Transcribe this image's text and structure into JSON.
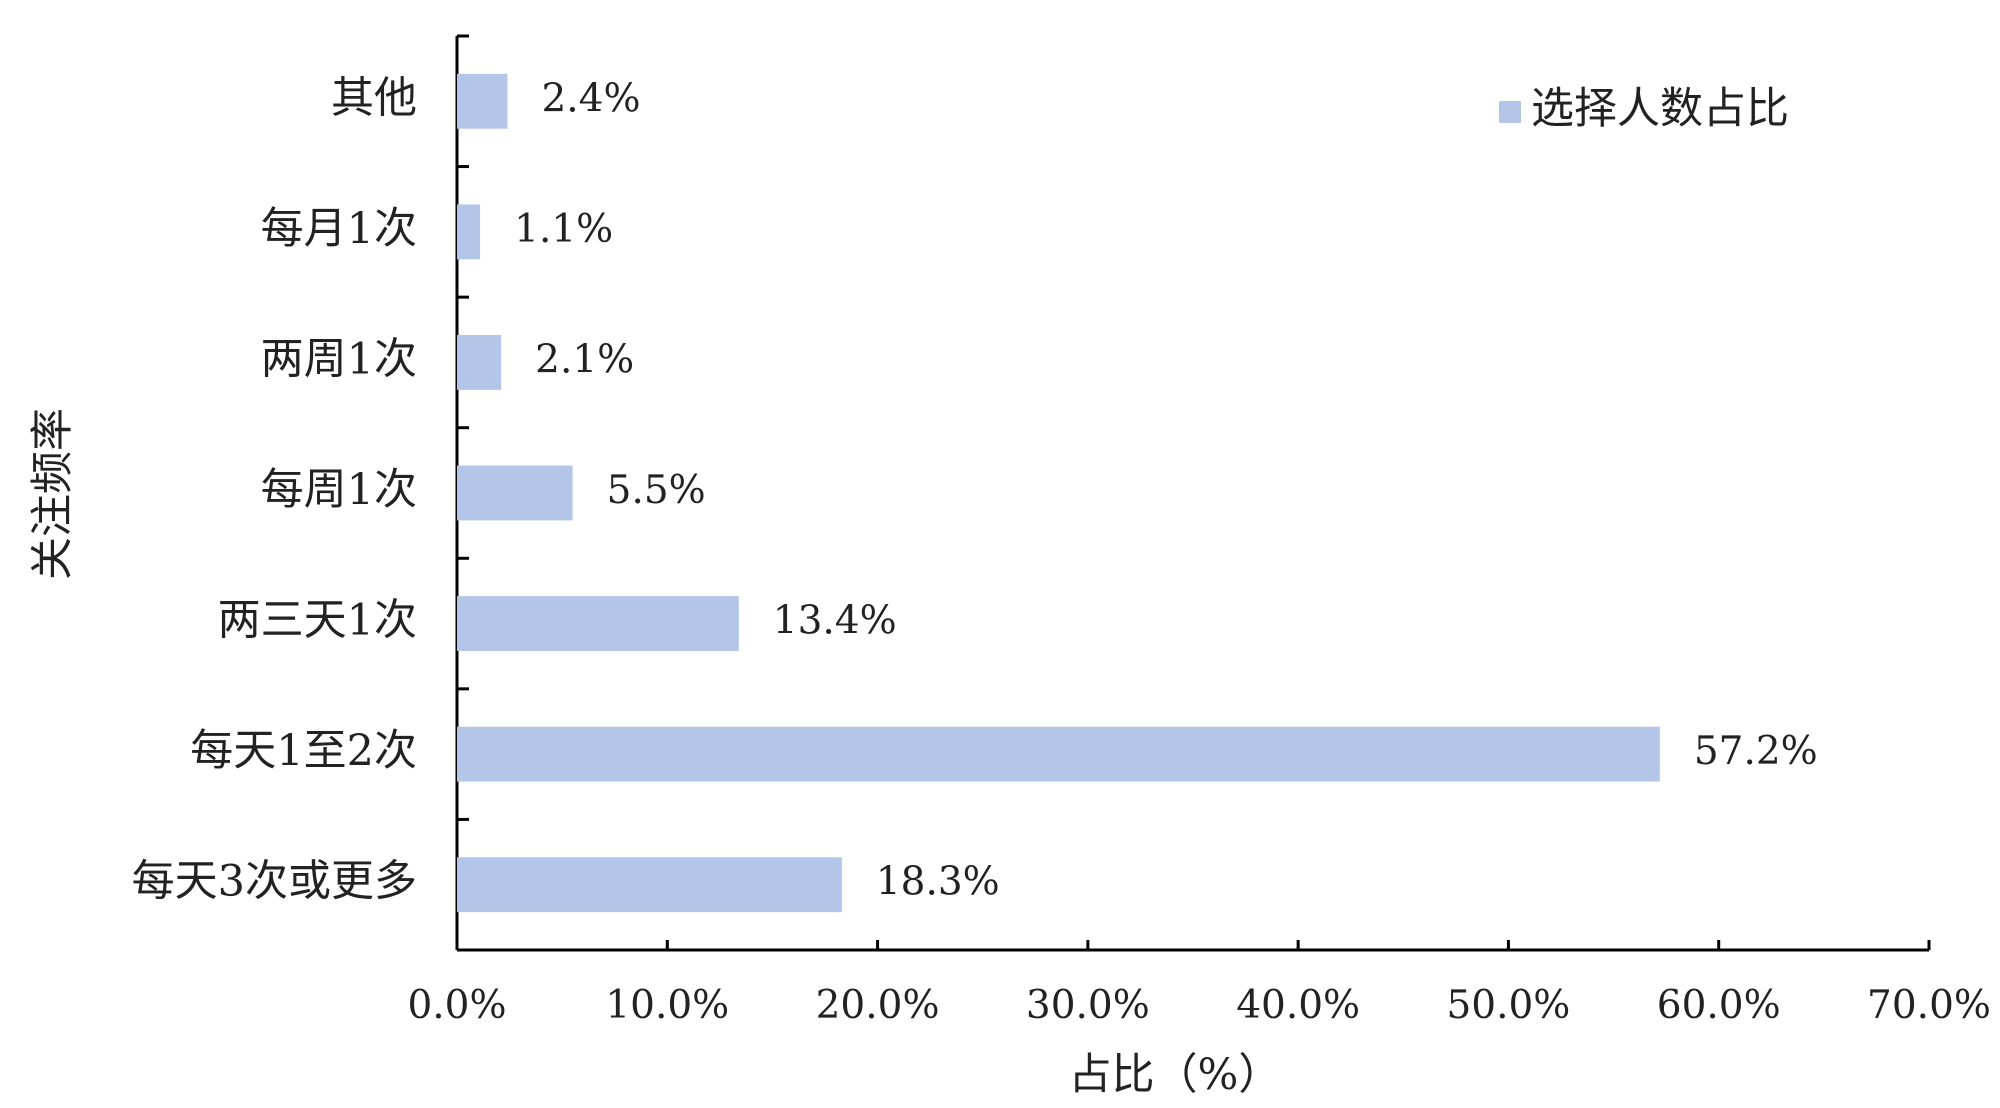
{
  "chart_data": {
    "type": "barh",
    "categories": [
      "其他",
      "每月1次",
      "两周1次",
      "每周1次",
      "两三天1次",
      "每天1至2次",
      "每天3次或更多"
    ],
    "series": [
      {
        "name": "选择人数占比",
        "color": "#b4c6e7",
        "values": [
          2.4,
          1.1,
          2.1,
          5.5,
          13.4,
          57.2,
          18.3
        ],
        "value_labels": [
          "2.4%",
          "1.1%",
          "2.1%",
          "5.5%",
          "13.4%",
          "57.2%",
          "18.3%"
        ]
      }
    ],
    "xlim": [
      0,
      70
    ],
    "xticks": [
      {
        "value": 0,
        "label": "0.0%"
      },
      {
        "value": 10,
        "label": "10.0%"
      },
      {
        "value": 20,
        "label": "20.0%"
      },
      {
        "value": 30,
        "label": "30.0%"
      },
      {
        "value": 40,
        "label": "40.0%"
      },
      {
        "value": 50,
        "label": "50.0%"
      },
      {
        "value": 60,
        "label": "60.0%"
      },
      {
        "value": 70,
        "label": "70.0%"
      }
    ],
    "x_label": "占比（%）",
    "y_label": "关注频率",
    "legend": "upper right"
  }
}
